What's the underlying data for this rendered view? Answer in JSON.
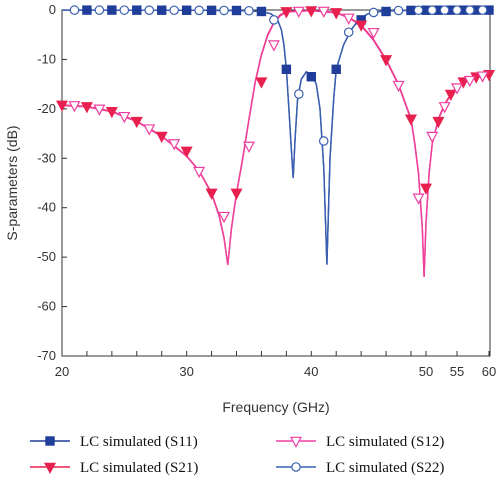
{
  "chart_data": {
    "type": "line",
    "xlabel": "Frequency (GHz)",
    "ylabel": "S-parameters (dB)",
    "xlim": [
      20,
      60
    ],
    "ylim": [
      -70,
      0
    ],
    "xticks": [
      "20",
      "22",
      "24",
      "26",
      "28",
      "30",
      "32",
      "34",
      "36",
      "38",
      "40",
      "42",
      "44",
      "46",
      "48",
      "50",
      "55",
      "60"
    ],
    "yticks": [
      "0",
      "-10",
      "-20",
      "-30",
      "-40",
      "-50",
      "-60",
      "-70"
    ],
    "grid": false,
    "legend_position": "bottom",
    "series": [
      {
        "name": "LC simulated (S11)",
        "color": "#1f3d99",
        "marker": "square-filled",
        "curve": [
          [
            20,
            -0.02
          ],
          [
            30,
            -0.05
          ],
          [
            34,
            -0.1
          ],
          [
            36,
            -0.3
          ],
          [
            36.8,
            -0.8
          ],
          [
            37.3,
            -2
          ],
          [
            37.6,
            -4
          ],
          [
            37.8,
            -7
          ],
          [
            38,
            -12
          ],
          [
            38.2,
            -20
          ],
          [
            38.4,
            -28
          ],
          [
            38.55,
            -34
          ],
          [
            38.7,
            -26
          ],
          [
            38.9,
            -18
          ],
          [
            39.2,
            -14
          ],
          [
            39.6,
            -12.5
          ],
          [
            40,
            -13
          ],
          [
            40.4,
            -15
          ],
          [
            40.7,
            -20
          ],
          [
            41,
            -32
          ],
          [
            41.25,
            -51.5
          ],
          [
            41.5,
            -30
          ],
          [
            41.8,
            -18
          ],
          [
            42,
            -12
          ],
          [
            42.6,
            -7
          ],
          [
            43.2,
            -4
          ],
          [
            43.8,
            -2
          ],
          [
            44.5,
            -0.8
          ],
          [
            45.5,
            -0.3
          ],
          [
            47,
            -0.1
          ],
          [
            50,
            -0.05
          ],
          [
            60,
            -0.02
          ]
        ],
        "markers_x": [
          22,
          24,
          26,
          28,
          30,
          32,
          34,
          36,
          38,
          40,
          42,
          44,
          46,
          48,
          50,
          52,
          54,
          56,
          58,
          60
        ],
        "markers_y": [
          -0.02,
          -0.02,
          -0.03,
          -0.04,
          -0.05,
          -0.07,
          -0.1,
          -0.3,
          -12,
          -13.5,
          -12,
          -2,
          -0.3,
          -0.08,
          -0.05,
          -0.04,
          -0.03,
          -0.03,
          -0.02,
          -0.02
        ]
      },
      {
        "name": "LC simulated (S21)",
        "color": "#e8204f",
        "marker": "triangle-down-filled",
        "curve": [
          [
            20,
            -19.2
          ],
          [
            22,
            -19.5
          ],
          [
            24,
            -20.5
          ],
          [
            26,
            -22.5
          ],
          [
            28,
            -25.5
          ],
          [
            30,
            -29.5
          ],
          [
            31,
            -32.5
          ],
          [
            32,
            -37
          ],
          [
            32.6,
            -41.5
          ],
          [
            33,
            -46
          ],
          [
            33.3,
            -51.5
          ],
          [
            33.6,
            -44
          ],
          [
            34,
            -37
          ],
          [
            34.5,
            -30
          ],
          [
            35,
            -22
          ],
          [
            35.5,
            -14.5
          ],
          [
            36,
            -9
          ],
          [
            36.5,
            -5
          ],
          [
            37,
            -2.5
          ],
          [
            37.5,
            -1
          ],
          [
            38,
            -0.3
          ],
          [
            40,
            -0.1
          ],
          [
            42,
            -0.5
          ],
          [
            43,
            -1.5
          ],
          [
            44,
            -3
          ],
          [
            45,
            -6
          ],
          [
            46,
            -10
          ],
          [
            47,
            -15
          ],
          [
            48,
            -22
          ],
          [
            48.5,
            -27
          ],
          [
            49,
            -33
          ],
          [
            49.5,
            -44
          ],
          [
            49.75,
            -54
          ],
          [
            50,
            -43
          ],
          [
            50.5,
            -33
          ],
          [
            51,
            -27
          ],
          [
            52,
            -22
          ],
          [
            53,
            -19
          ],
          [
            54,
            -17
          ],
          [
            55,
            -15.5
          ],
          [
            56,
            -14.5
          ],
          [
            58,
            -13.5
          ],
          [
            60,
            -13
          ]
        ],
        "markers_x": [
          20,
          22,
          24,
          26,
          28,
          30,
          32,
          34,
          36,
          38,
          40,
          42,
          44,
          46,
          48,
          50,
          52,
          54,
          56,
          58,
          60
        ],
        "markers_y": [
          -19.2,
          -19.5,
          -20.5,
          -22.5,
          -25.5,
          -28.5,
          -37,
          -37,
          -14.5,
          -0.3,
          -0.1,
          -0.5,
          -3,
          -10,
          -22,
          -36,
          -22.5,
          -17,
          -14.5,
          -13.5,
          -13
        ]
      },
      {
        "name": "LC simulated (S12)",
        "color": "#ee3fa0",
        "marker": "triangle-down-open",
        "curve": [
          [
            20,
            -19.3
          ],
          [
            22,
            -19.6
          ],
          [
            24,
            -20.6
          ],
          [
            26,
            -22.6
          ],
          [
            28,
            -25.6
          ],
          [
            30,
            -29.6
          ],
          [
            31,
            -32.6
          ],
          [
            32,
            -37.2
          ],
          [
            32.6,
            -41.7
          ],
          [
            33,
            -46.2
          ],
          [
            33.3,
            -51.6
          ],
          [
            33.6,
            -44.2
          ],
          [
            34,
            -37.2
          ],
          [
            34.5,
            -30.2
          ],
          [
            35,
            -22.2
          ],
          [
            35.5,
            -14.7
          ],
          [
            36,
            -9.2
          ],
          [
            36.5,
            -5.2
          ],
          [
            37,
            -2.7
          ],
          [
            37.5,
            -1.2
          ],
          [
            38,
            -0.4
          ],
          [
            40,
            -0.15
          ],
          [
            42,
            -0.6
          ],
          [
            43,
            -1.6
          ],
          [
            44,
            -3.2
          ],
          [
            45,
            -6.2
          ],
          [
            46,
            -10.2
          ],
          [
            47,
            -15.2
          ],
          [
            48,
            -22.2
          ],
          [
            48.5,
            -27.2
          ],
          [
            49,
            -33.2
          ],
          [
            49.5,
            -44.2
          ],
          [
            49.75,
            -54
          ],
          [
            50,
            -43.2
          ],
          [
            50.5,
            -33.2
          ],
          [
            51,
            -27.2
          ],
          [
            52,
            -22.2
          ],
          [
            53,
            -19.2
          ],
          [
            54,
            -17.2
          ],
          [
            55,
            -15.7
          ],
          [
            56,
            -14.7
          ],
          [
            58,
            -13.7
          ],
          [
            60,
            -13.2
          ]
        ],
        "markers_x": [
          21,
          23,
          25,
          27,
          29,
          31,
          33,
          35,
          37,
          39,
          41,
          43,
          45,
          47,
          49,
          51,
          53,
          55,
          57,
          59
        ],
        "markers_y": [
          -19.3,
          -20,
          -21.5,
          -24,
          -27,
          -32.6,
          -41.7,
          -27.5,
          -7,
          -0.2,
          -0.2,
          -1.6,
          -4.5,
          -15.2,
          -38,
          -25.5,
          -19.5,
          -15.7,
          -14.2,
          -13.3
        ]
      },
      {
        "name": "LC simulated (S22)",
        "color": "#3a5fb0",
        "marker": "circle-open",
        "curve": [
          [
            20,
            -0.02
          ],
          [
            30,
            -0.05
          ],
          [
            34,
            -0.1
          ],
          [
            36,
            -0.3
          ],
          [
            36.8,
            -0.8
          ],
          [
            37.3,
            -2
          ],
          [
            37.6,
            -4
          ],
          [
            37.8,
            -7
          ],
          [
            38,
            -12
          ],
          [
            38.2,
            -20
          ],
          [
            38.4,
            -28
          ],
          [
            38.55,
            -34
          ],
          [
            38.7,
            -26
          ],
          [
            38.9,
            -18
          ],
          [
            39.2,
            -14
          ],
          [
            39.6,
            -12.5
          ],
          [
            40,
            -13
          ],
          [
            40.4,
            -15
          ],
          [
            40.7,
            -20
          ],
          [
            41,
            -32
          ],
          [
            41.25,
            -51.5
          ],
          [
            41.5,
            -30
          ],
          [
            41.8,
            -18
          ],
          [
            42,
            -12
          ],
          [
            42.6,
            -7
          ],
          [
            43.2,
            -4
          ],
          [
            43.8,
            -2
          ],
          [
            44.5,
            -0.8
          ],
          [
            45.5,
            -0.3
          ],
          [
            47,
            -0.1
          ],
          [
            50,
            -0.05
          ],
          [
            60,
            -0.02
          ]
        ],
        "markers_x": [
          21,
          23,
          25,
          27,
          29,
          31,
          33,
          35,
          37,
          39,
          41,
          43,
          45,
          47,
          49,
          51,
          53,
          55,
          57,
          59
        ],
        "markers_y": [
          -0.02,
          -0.02,
          -0.03,
          -0.04,
          -0.05,
          -0.06,
          -0.08,
          -0.15,
          -2,
          -17,
          -26.5,
          -4.5,
          -0.5,
          -0.1,
          -0.05,
          -0.04,
          -0.03,
          -0.03,
          -0.02,
          -0.02
        ]
      }
    ]
  }
}
